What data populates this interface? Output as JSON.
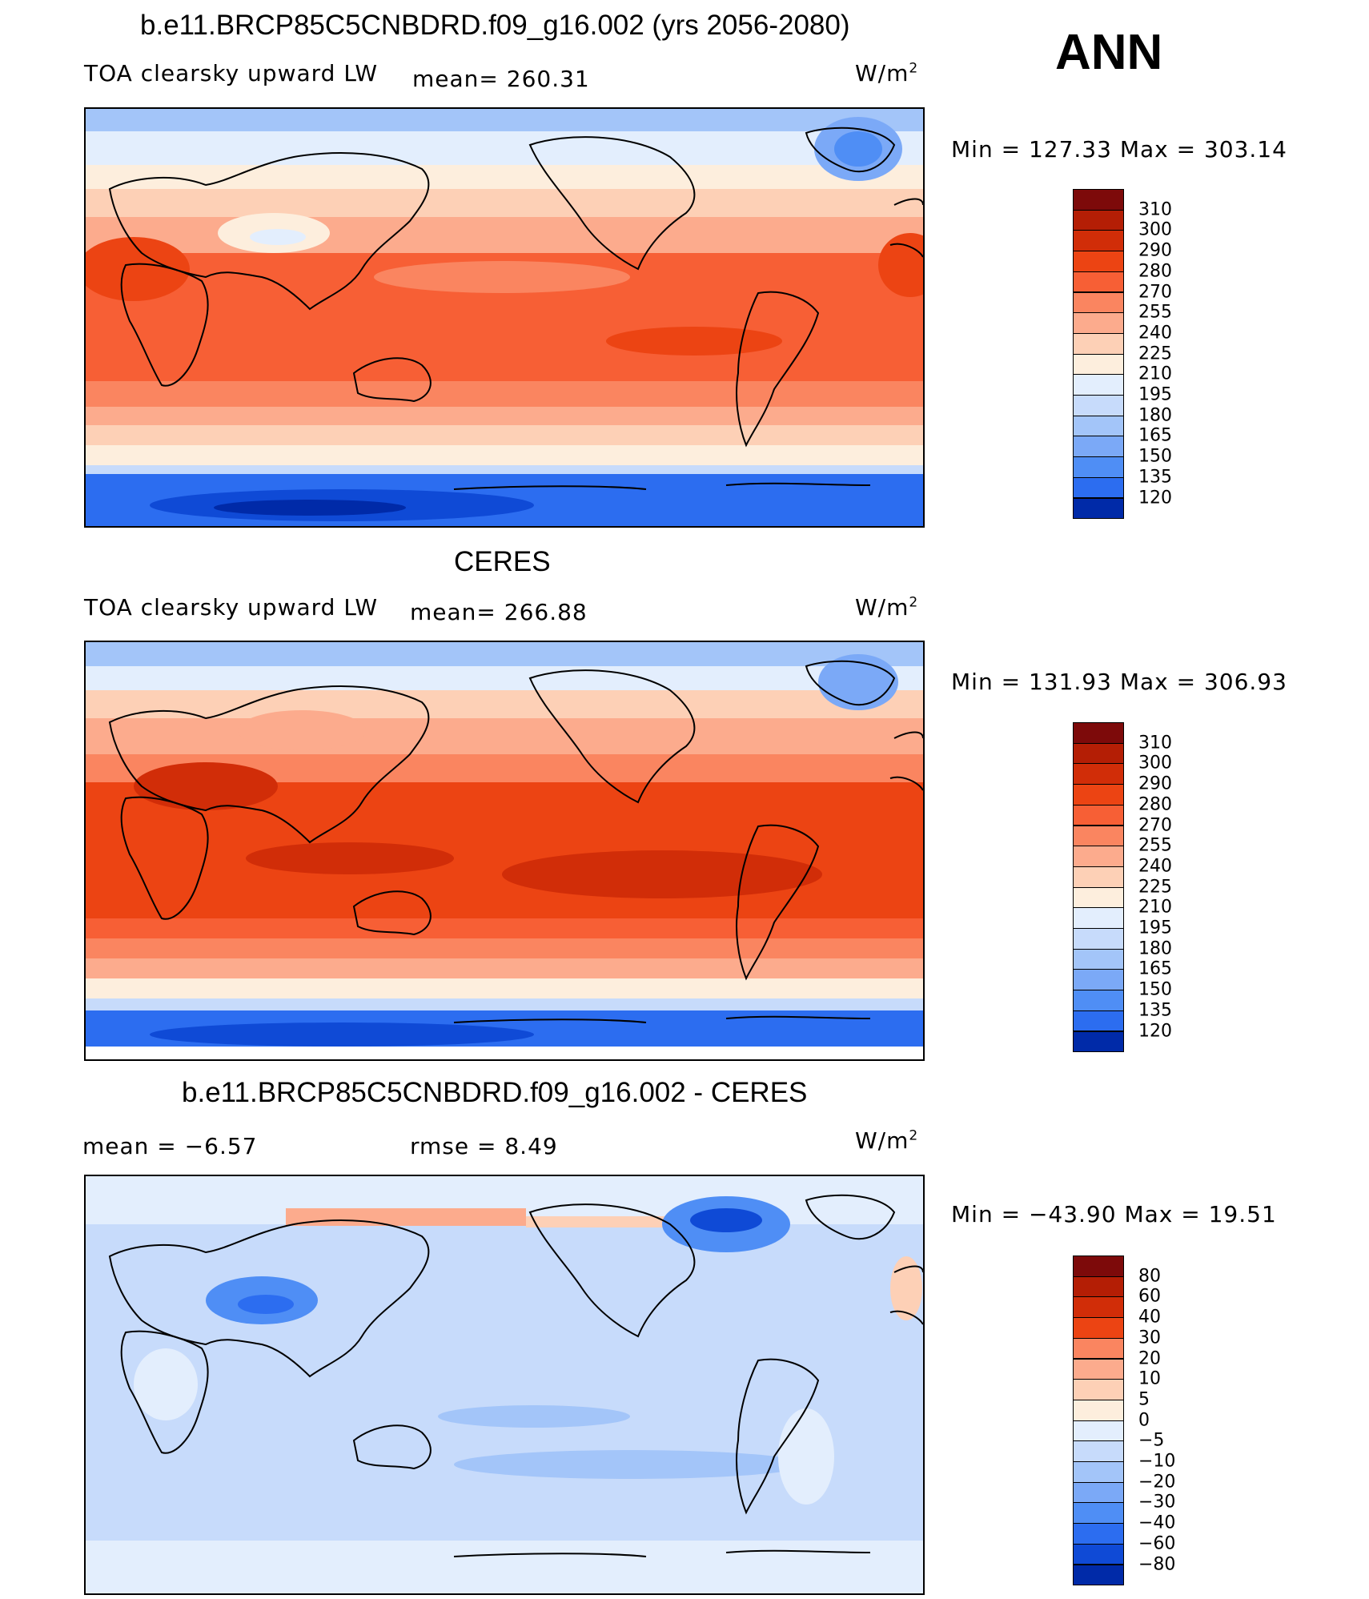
{
  "annotation": "ANN",
  "units_base": "W/m",
  "units_exp": "2",
  "colors": {
    "warm": [
      "#fdeedd",
      "#fdd0b6",
      "#fcab8d",
      "#fa8560",
      "#f75f35",
      "#ec4413",
      "#d12d08",
      "#b41e05",
      "#7d0a0a"
    ],
    "cool": [
      "#00008c",
      "#002aa8",
      "#0f4ad6",
      "#2c6df0",
      "#4f8ef5",
      "#7ba9f7",
      "#a3c5f9",
      "#c7dbfb",
      "#e3eefd"
    ],
    "coast": "#000000"
  },
  "panels": [
    {
      "title": "b.e11.BRCP85C5CNBDRD.f09_g16.002 (yrs 2056-2080)",
      "left_label": "TOA clearsky upward LW",
      "stat": "mean= 260.31",
      "minmax": "Min = 127.33 Max = 303.14",
      "colorbar": {
        "labels": [
          "310",
          "300",
          "290",
          "280",
          "270",
          "255",
          "240",
          "225",
          "210",
          "195",
          "180",
          "165",
          "150",
          "135",
          "120"
        ],
        "colors": [
          "#7d0a0a",
          "#b41e05",
          "#d12d08",
          "#ec4413",
          "#f75f35",
          "#fa8560",
          "#fcab8d",
          "#fdd0b6",
          "#fdeedd",
          "#e3eefd",
          "#c7dbfb",
          "#a3c5f9",
          "#7ba9f7",
          "#4f8ef5",
          "#2c6df0",
          "#002aa8"
        ]
      }
    },
    {
      "title": "CERES",
      "left_label": "TOA clearsky upward LW",
      "stat": "mean= 266.88",
      "minmax": "Min = 131.93 Max = 306.93",
      "colorbar": {
        "labels": [
          "310",
          "300",
          "290",
          "280",
          "270",
          "255",
          "240",
          "225",
          "210",
          "195",
          "180",
          "165",
          "150",
          "135",
          "120"
        ],
        "colors": [
          "#7d0a0a",
          "#b41e05",
          "#d12d08",
          "#ec4413",
          "#f75f35",
          "#fa8560",
          "#fcab8d",
          "#fdd0b6",
          "#fdeedd",
          "#e3eefd",
          "#c7dbfb",
          "#a3c5f9",
          "#7ba9f7",
          "#4f8ef5",
          "#2c6df0",
          "#002aa8"
        ]
      }
    },
    {
      "title": "b.e11.BRCP85C5CNBDRD.f09_g16.002 - CERES",
      "left_label": "mean =   −6.57",
      "stat": "rmse =    8.49",
      "minmax": "Min = −43.90 Max =   19.51",
      "colorbar": {
        "labels": [
          "80",
          "60",
          "40",
          "30",
          "20",
          "10",
          "5",
          "0",
          "−5",
          "−10",
          "−20",
          "−30",
          "−40",
          "−60",
          "−80"
        ],
        "colors": [
          "#7d0a0a",
          "#b41e05",
          "#d12d08",
          "#ec4413",
          "#fa8560",
          "#fcab8d",
          "#fdd0b6",
          "#fdeedd",
          "#e3eefd",
          "#c7dbfb",
          "#a3c5f9",
          "#7ba9f7",
          "#4f8ef5",
          "#2c6df0",
          "#0f4ad6",
          "#002aa8"
        ]
      }
    }
  ]
}
